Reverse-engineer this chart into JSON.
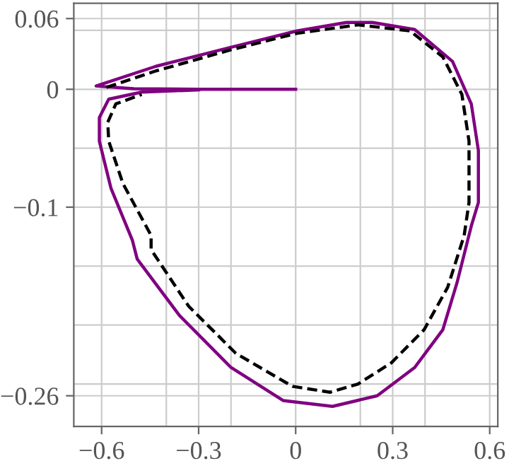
{
  "chart_data": {
    "type": "line",
    "xlim": [
      -0.686,
      0.625
    ],
    "ylim": [
      -0.286,
      0.073
    ],
    "xticks": [
      -0.6,
      {
        "value": -0.4,
        "label": null
      },
      -0.3,
      {
        "value": -0.2,
        "label": null
      },
      0,
      {
        "value": 0.2,
        "label": null
      },
      0.3,
      {
        "value": 0.4,
        "label": null
      },
      0.6
    ],
    "yticks": [
      0.06,
      {
        "value": 0.05,
        "label": null
      },
      0,
      {
        "value": -0.05,
        "label": null
      },
      -0.1,
      {
        "value": -0.15,
        "label": null
      },
      {
        "value": -0.2,
        "label": null
      },
      {
        "value": -0.25,
        "label": null
      },
      -0.26
    ],
    "grid": true,
    "marker": "none",
    "series": [
      {
        "color": "#800080",
        "line_style": "solid",
        "x": [
          0,
          -0.3,
          -0.5,
          -0.617,
          -0.432,
          -0.2,
          0.004,
          0.157,
          0.237,
          0.368,
          0.485,
          0.543,
          0.565,
          0.565,
          0.543,
          0.499,
          0.455,
          0.368,
          0.252,
          0.114,
          -0.039,
          -0.2,
          -0.359,
          -0.49,
          -0.505,
          -0.571,
          -0.607,
          -0.607,
          -0.578,
          -0.476,
          -0.3
        ],
        "values": [
          0,
          0,
          0.0005,
          0.0028,
          0.0195,
          0.0356,
          0.0495,
          0.0567,
          0.0567,
          0.0507,
          0.0236,
          -0.0123,
          -0.052,
          -0.096,
          -0.116,
          -0.164,
          -0.204,
          -0.236,
          -0.26,
          -0.269,
          -0.264,
          -0.236,
          -0.192,
          -0.144,
          -0.128,
          -0.084,
          -0.044,
          -0.024,
          -0.0084,
          -0.0024,
          -0.0005
        ]
      },
      {
        "color": "#000000",
        "line_style": "dashed",
        "x": [
          -0.585,
          -0.432,
          -0.2,
          0.004,
          0.193,
          0.354,
          0.455,
          0.514,
          0.536,
          0.536,
          0.521,
          0.47,
          0.397,
          0.296,
          0.193,
          0.106,
          -0.01,
          -0.185,
          -0.331,
          -0.447,
          -0.447,
          -0.534,
          -0.578,
          -0.581,
          -0.556,
          -0.476
        ],
        "values": [
          0.0016,
          0.0156,
          0.0335,
          0.0475,
          0.0547,
          0.0495,
          0.0275,
          -0.0044,
          -0.044,
          -0.096,
          -0.124,
          -0.168,
          -0.204,
          -0.232,
          -0.25,
          -0.257,
          -0.252,
          -0.224,
          -0.184,
          -0.136,
          -0.124,
          -0.08,
          -0.044,
          -0.028,
          -0.0124,
          -0.0044
        ]
      }
    ]
  }
}
